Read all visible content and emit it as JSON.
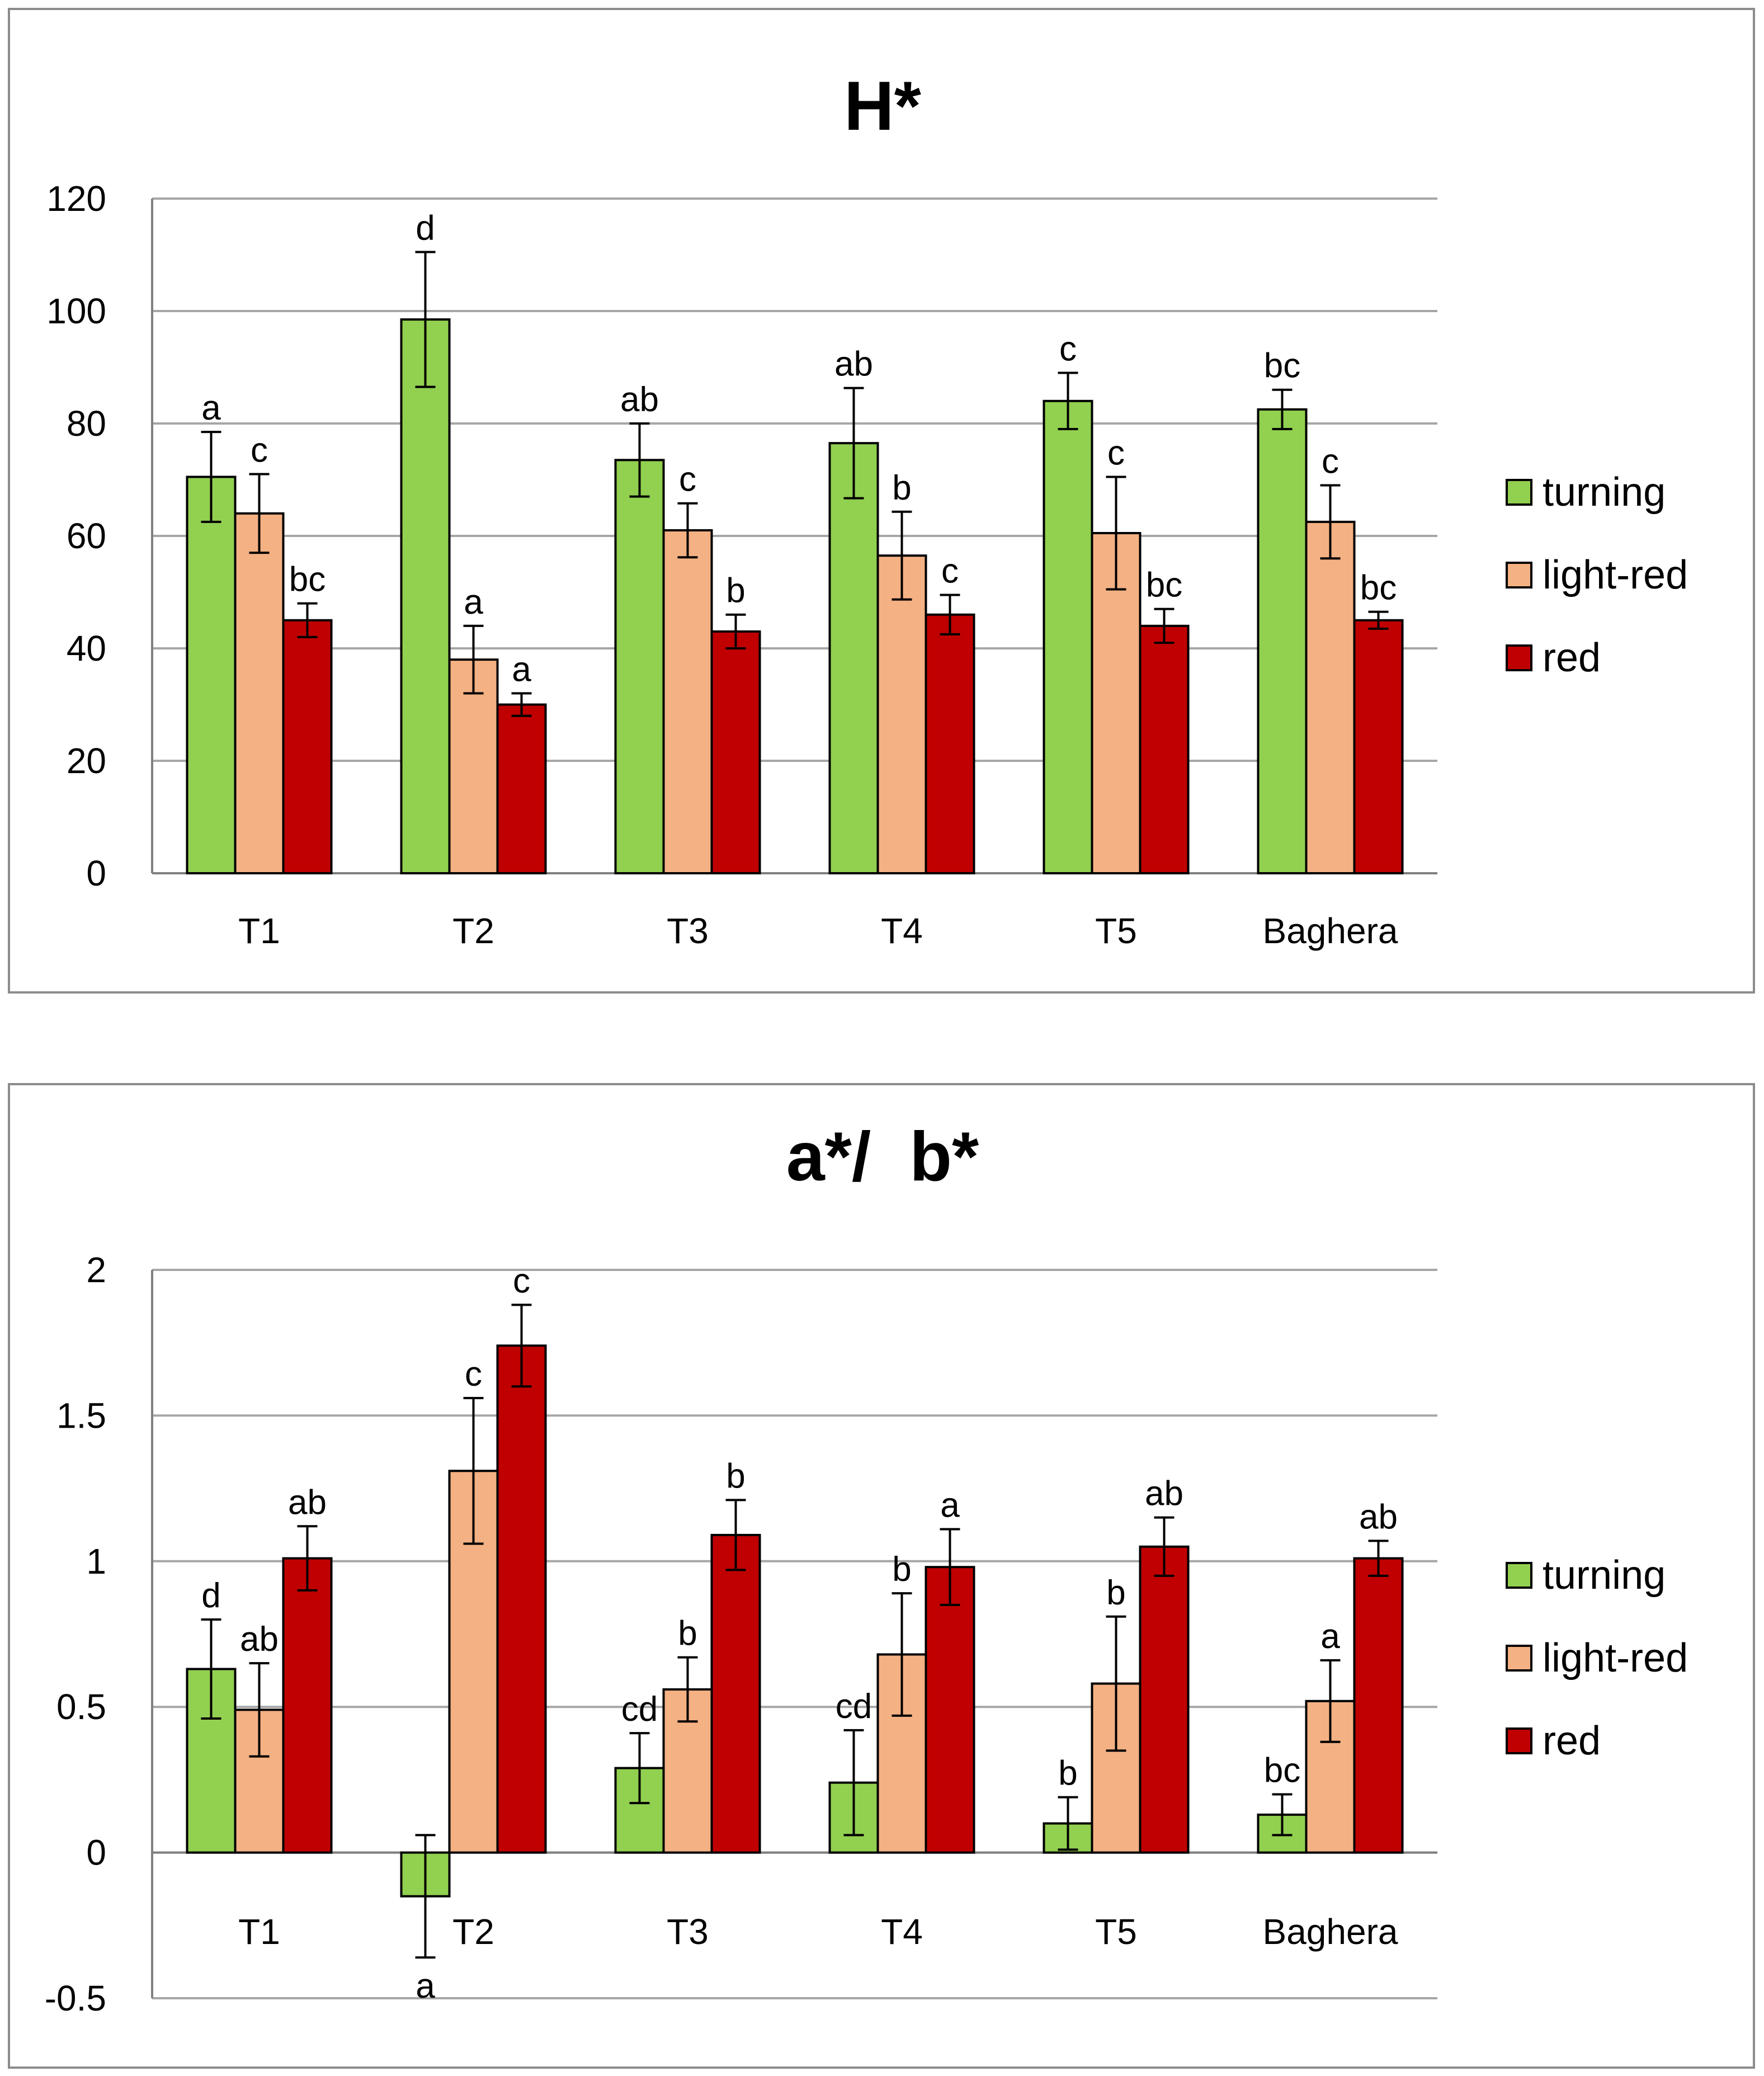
{
  "colors": {
    "turning": "#92d050",
    "light-red": "#f4b183",
    "red": "#c00000"
  },
  "chart_data": [
    {
      "type": "bar",
      "title": "H*",
      "categories": [
        "T1",
        "T2",
        "T3",
        "T4",
        "T5",
        "Baghera"
      ],
      "ylim": [
        0,
        120
      ],
      "yticks": [
        0,
        20,
        40,
        60,
        80,
        100,
        120
      ],
      "ytick_labels": [
        "0",
        "20",
        "40",
        "60",
        "80",
        "100",
        "120"
      ],
      "grid": true,
      "legend": "right",
      "xlabel": "",
      "ylabel": "",
      "series": [
        {
          "name": "turning",
          "values": [
            70.5,
            98.5,
            73.5,
            76.5,
            84.0,
            82.5
          ],
          "errors": [
            8.0,
            12.0,
            6.5,
            9.8,
            5.0,
            3.5
          ],
          "letters": [
            "a",
            "d",
            "ab",
            "ab",
            "c",
            "bc"
          ]
        },
        {
          "name": "light-red",
          "values": [
            64.0,
            38.0,
            61.0,
            56.5,
            60.5,
            62.5
          ],
          "errors": [
            7.0,
            6.0,
            4.8,
            7.8,
            10.0,
            6.5
          ],
          "letters": [
            "c",
            "a",
            "c",
            "b",
            "c",
            "c"
          ]
        },
        {
          "name": "red",
          "values": [
            45.0,
            30.0,
            43.0,
            46.0,
            44.0,
            45.0
          ],
          "errors": [
            3.0,
            2.0,
            3.0,
            3.5,
            3.0,
            1.5
          ],
          "letters": [
            "bc",
            "a",
            "b",
            "c",
            "bc",
            "bc"
          ]
        }
      ]
    },
    {
      "type": "bar",
      "title": "a*/  b*",
      "categories": [
        "T1",
        "T2",
        "T3",
        "T4",
        "T5",
        "Baghera"
      ],
      "ylim": [
        -0.5,
        2
      ],
      "yticks": [
        -0.5,
        0,
        0.5,
        1,
        1.5,
        2
      ],
      "ytick_labels": [
        "-0.5",
        "0",
        "0.5",
        "1",
        "1.5",
        "2"
      ],
      "grid": true,
      "legend": "right",
      "xlabel": "",
      "ylabel": "",
      "series": [
        {
          "name": "turning",
          "values": [
            0.63,
            -0.15,
            0.29,
            0.24,
            0.1,
            0.13
          ],
          "errors": [
            0.17,
            0.21,
            0.12,
            0.18,
            0.09,
            0.07
          ],
          "letters": [
            "d",
            "a",
            "cd",
            "cd",
            "b",
            "bc"
          ]
        },
        {
          "name": "light-red",
          "values": [
            0.49,
            1.31,
            0.56,
            0.68,
            0.58,
            0.52
          ],
          "errors": [
            0.16,
            0.25,
            0.11,
            0.21,
            0.23,
            0.14
          ],
          "letters": [
            "ab",
            "c",
            "b",
            "b",
            "b",
            "a"
          ]
        },
        {
          "name": "red",
          "values": [
            1.01,
            1.74,
            1.09,
            0.98,
            1.05,
            1.01
          ],
          "errors": [
            0.11,
            0.14,
            0.12,
            0.13,
            0.1,
            0.06
          ],
          "letters": [
            "ab",
            "c",
            "b",
            "a",
            "ab",
            "ab"
          ]
        }
      ]
    }
  ]
}
